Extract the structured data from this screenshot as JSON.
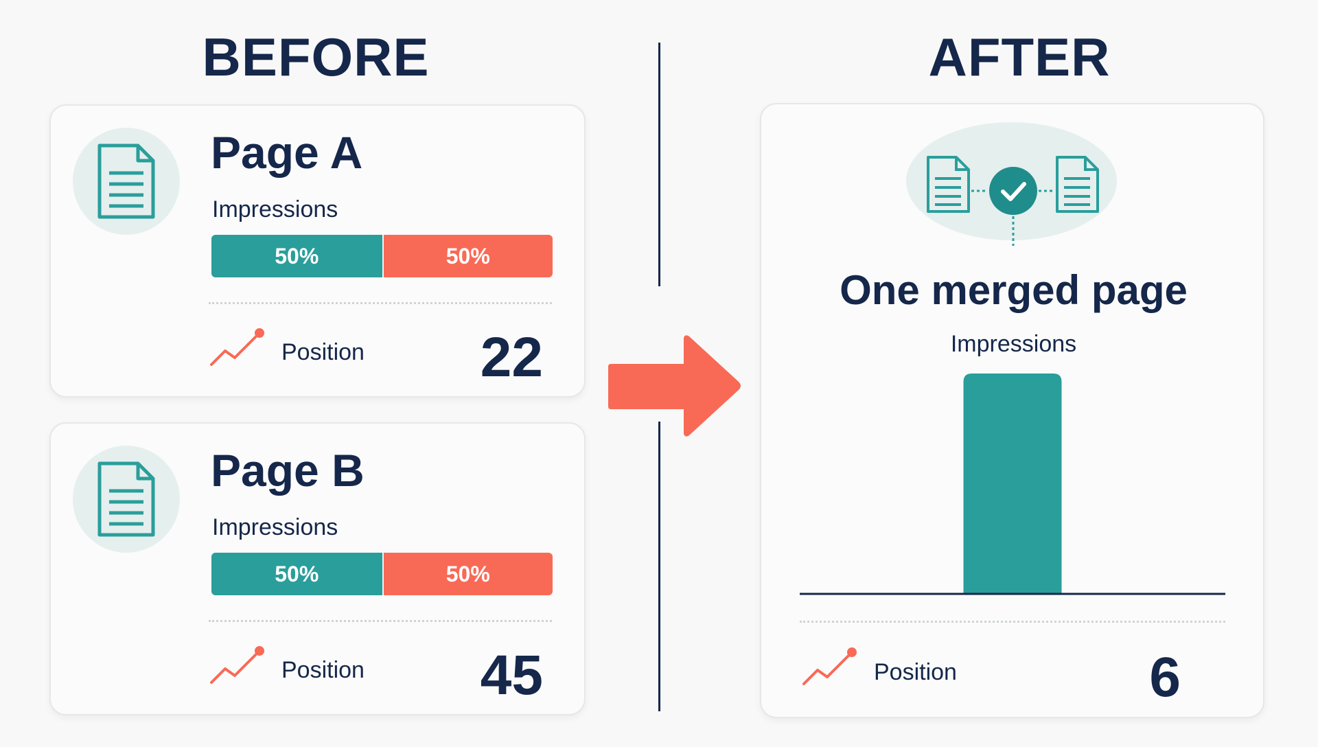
{
  "before": {
    "heading": "BEFORE",
    "pages": [
      {
        "title": "Page A",
        "impressions_label": "Impressions",
        "split": [
          {
            "label": "50%",
            "fraction": 0.5,
            "color": "#2a9e9b"
          },
          {
            "label": "50%",
            "fraction": 0.5,
            "color": "#f86a56"
          }
        ],
        "position_label": "Position",
        "position_value": "22"
      },
      {
        "title": "Page B",
        "impressions_label": "Impressions",
        "split": [
          {
            "label": "50%",
            "fraction": 0.5,
            "color": "#2a9e9b"
          },
          {
            "label": "50%",
            "fraction": 0.5,
            "color": "#f86a56"
          }
        ],
        "position_label": "Position",
        "position_value": "45"
      }
    ]
  },
  "after": {
    "heading": "AFTER",
    "title": "One merged page",
    "impressions_label": "Impressions",
    "position_label": "Position",
    "position_value": "6"
  },
  "chart_data": {
    "type": "bar",
    "categories": [
      ""
    ],
    "values": [
      1
    ],
    "title": "Impressions",
    "xlabel": "",
    "ylabel": "",
    "ylim": [
      0,
      1
    ],
    "grid": false
  },
  "icons": {
    "document": "document-icon",
    "trend": "trend-up-icon",
    "arrow": "arrow-right-icon",
    "merge": "merge-check-icon"
  },
  "colors": {
    "navy": "#15274a",
    "teal": "#2a9e9b",
    "coral": "#f86a56",
    "icon_bg": "#e5efee"
  }
}
